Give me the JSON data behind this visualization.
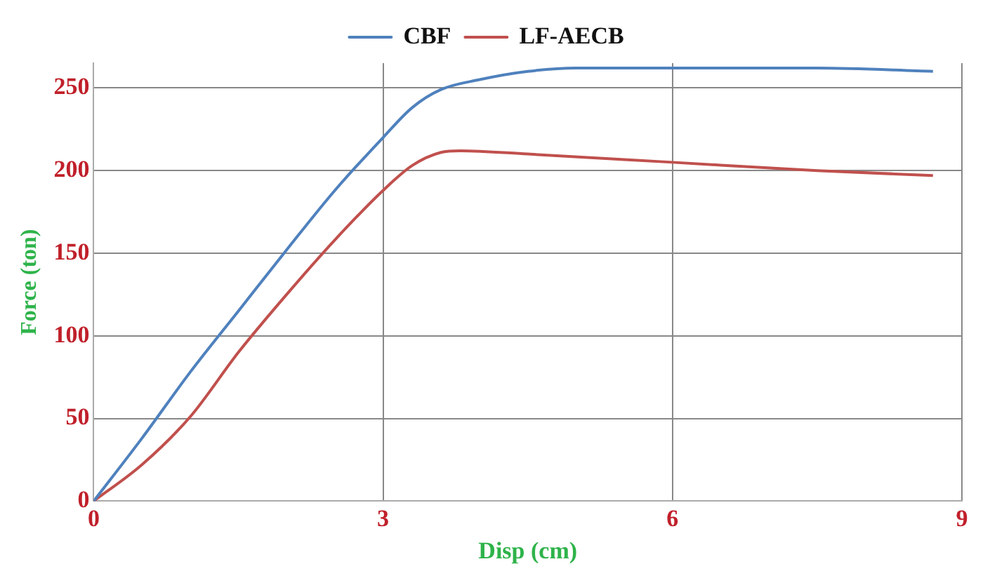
{
  "chart_data": {
    "type": "line",
    "xlabel": "Disp (cm)",
    "ylabel": "Force (ton)",
    "xlim": [
      0,
      9
    ],
    "xticks": [
      0,
      3,
      6,
      9
    ],
    "ylim": [
      0,
      265
    ],
    "yticks": [
      0,
      50,
      100,
      150,
      200,
      250
    ],
    "grid": true,
    "legend": "top",
    "marker": "none",
    "line_style": "solid",
    "series": [
      {
        "name": "CBF",
        "color": "#4f81bd",
        "x": [
          0,
          0.5,
          1,
          1.5,
          2,
          2.5,
          3,
          3.3,
          3.6,
          4,
          4.5,
          5,
          6,
          7.5,
          8.7
        ],
        "values": [
          0,
          38,
          78,
          115,
          152,
          188,
          220,
          238,
          249,
          255,
          260,
          262,
          262,
          262,
          260
        ]
      },
      {
        "name": "LF-AECB",
        "color": "#c0504d",
        "x": [
          0,
          0.5,
          1,
          1.5,
          2,
          2.5,
          3,
          3.3,
          3.6,
          3.8,
          4.5,
          6,
          7.5,
          8.7
        ],
        "values": [
          0,
          22,
          51,
          90,
          125,
          158,
          188,
          203,
          211,
          212,
          210,
          205,
          200,
          197
        ]
      }
    ]
  }
}
